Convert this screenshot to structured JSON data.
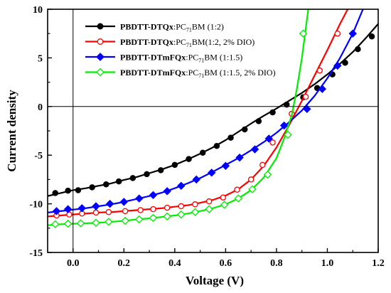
{
  "chart_data": {
    "type": "line",
    "title": "",
    "xlabel": "Voltage (V)",
    "ylabel": "Current density",
    "xlim": [
      -0.1,
      1.2
    ],
    "ylim": [
      -15,
      10
    ],
    "x_ticks": [
      0.0,
      0.2,
      0.4,
      0.6,
      0.8,
      1.0,
      1.2
    ],
    "x_tick_labels": [
      "0.0",
      "0.2",
      "0.4",
      "0.6",
      "0.8",
      "1.0",
      "1.2"
    ],
    "y_ticks": [
      -15,
      -10,
      -5,
      0,
      5,
      10
    ],
    "y_tick_labels": [
      "-15",
      "-10",
      "-5",
      "0",
      "5",
      "10"
    ],
    "reference_lines": {
      "x": 0,
      "y": 0
    },
    "grid": false,
    "legend_position": "top-left",
    "series": [
      {
        "legend": {
          "bold": "PBDTT-DTQx",
          "rest": ":PC",
          "sub": "71",
          "tail": "BM (1:2)"
        },
        "color": "#000000",
        "marker": "circle",
        "filled": true,
        "points": [
          [
            -0.1,
            -9.2
          ],
          [
            -0.05,
            -8.9
          ],
          [
            0.0,
            -8.6
          ],
          [
            0.05,
            -8.4
          ],
          [
            0.1,
            -8.15
          ],
          [
            0.15,
            -7.9
          ],
          [
            0.2,
            -7.55
          ],
          [
            0.25,
            -7.25
          ],
          [
            0.3,
            -6.85
          ],
          [
            0.35,
            -6.45
          ],
          [
            0.4,
            -6.0
          ],
          [
            0.45,
            -5.45
          ],
          [
            0.5,
            -4.85
          ],
          [
            0.55,
            -4.2
          ],
          [
            0.6,
            -3.45
          ],
          [
            0.65,
            -2.6
          ],
          [
            0.7,
            -1.75
          ],
          [
            0.75,
            -0.95
          ],
          [
            0.8,
            -0.2
          ],
          [
            0.85,
            0.6
          ],
          [
            0.9,
            1.4
          ],
          [
            0.95,
            2.3
          ],
          [
            1.0,
            3.3
          ],
          [
            1.05,
            4.4
          ],
          [
            1.1,
            5.6
          ],
          [
            1.15,
            7.0
          ],
          [
            1.2,
            8.5
          ]
        ],
        "markers_at": [
          [
            -0.07,
            -8.9
          ],
          [
            -0.02,
            -8.65
          ],
          [
            0.02,
            -8.6
          ],
          [
            0.075,
            -8.3
          ],
          [
            0.13,
            -8.0
          ],
          [
            0.18,
            -7.7
          ],
          [
            0.235,
            -7.35
          ],
          [
            0.29,
            -6.95
          ],
          [
            0.345,
            -6.55
          ],
          [
            0.4,
            -6.0
          ],
          [
            0.455,
            -5.4
          ],
          [
            0.51,
            -4.75
          ],
          [
            0.565,
            -4.05
          ],
          [
            0.62,
            -3.2
          ],
          [
            0.675,
            -2.35
          ],
          [
            0.73,
            -1.5
          ],
          [
            0.785,
            -0.6
          ],
          [
            0.84,
            0.2
          ],
          [
            0.905,
            0.95
          ],
          [
            0.96,
            1.9
          ],
          [
            1.02,
            3.3
          ],
          [
            1.07,
            4.5
          ],
          [
            1.12,
            5.9
          ],
          [
            1.175,
            7.2
          ]
        ]
      },
      {
        "legend": {
          "bold": "PBDTT-DTQx",
          "rest": ":PC",
          "sub": "71",
          "tail": "BM(1:2, 2% DIO)"
        },
        "color": "#ff0000",
        "marker": "circle",
        "filled": false,
        "points": [
          [
            -0.1,
            -11.3
          ],
          [
            -0.05,
            -11.2
          ],
          [
            0.0,
            -11.1
          ],
          [
            0.05,
            -11.0
          ],
          [
            0.1,
            -10.9
          ],
          [
            0.15,
            -10.85
          ],
          [
            0.2,
            -10.75
          ],
          [
            0.25,
            -10.65
          ],
          [
            0.3,
            -10.55
          ],
          [
            0.35,
            -10.45
          ],
          [
            0.4,
            -10.3
          ],
          [
            0.45,
            -10.15
          ],
          [
            0.5,
            -9.9
          ],
          [
            0.55,
            -9.6
          ],
          [
            0.6,
            -9.15
          ],
          [
            0.65,
            -8.5
          ],
          [
            0.7,
            -7.5
          ],
          [
            0.75,
            -6.1
          ],
          [
            0.8,
            -4.2
          ],
          [
            0.85,
            -1.9
          ],
          [
            0.9,
            0.6
          ],
          [
            0.95,
            3.2
          ],
          [
            1.0,
            5.8
          ],
          [
            1.05,
            8.5
          ],
          [
            1.08,
            10.0
          ]
        ],
        "markers_at": [
          [
            -0.065,
            -11.2
          ],
          [
            -0.015,
            -11.1
          ],
          [
            0.035,
            -11.0
          ],
          [
            0.09,
            -10.9
          ],
          [
            0.14,
            -10.85
          ],
          [
            0.205,
            -10.75
          ],
          [
            0.265,
            -10.65
          ],
          [
            0.315,
            -10.55
          ],
          [
            0.37,
            -10.4
          ],
          [
            0.425,
            -10.25
          ],
          [
            0.48,
            -10.05
          ],
          [
            0.535,
            -9.75
          ],
          [
            0.59,
            -9.35
          ],
          [
            0.645,
            -8.55
          ],
          [
            0.7,
            -7.5
          ],
          [
            0.745,
            -6.0
          ],
          [
            0.785,
            -3.7
          ],
          [
            0.86,
            -0.75
          ],
          [
            0.915,
            1.0
          ],
          [
            0.97,
            3.7
          ],
          [
            1.04,
            7.5
          ]
        ]
      },
      {
        "legend": {
          "bold": "PBDTT-DTmFQx",
          "rest": ":PC",
          "sub": "71",
          "tail": "BM (1:1.5)"
        },
        "color": "#0000ff",
        "marker": "diamond",
        "filled": true,
        "points": [
          [
            -0.1,
            -10.9
          ],
          [
            -0.05,
            -10.75
          ],
          [
            0.0,
            -10.6
          ],
          [
            0.05,
            -10.45
          ],
          [
            0.1,
            -10.25
          ],
          [
            0.15,
            -10.05
          ],
          [
            0.2,
            -9.8
          ],
          [
            0.25,
            -9.5
          ],
          [
            0.3,
            -9.2
          ],
          [
            0.35,
            -8.85
          ],
          [
            0.4,
            -8.4
          ],
          [
            0.45,
            -7.9
          ],
          [
            0.5,
            -7.35
          ],
          [
            0.55,
            -6.7
          ],
          [
            0.6,
            -6.0
          ],
          [
            0.65,
            -5.3
          ],
          [
            0.7,
            -4.5
          ],
          [
            0.75,
            -3.65
          ],
          [
            0.8,
            -2.7
          ],
          [
            0.85,
            -1.6
          ],
          [
            0.9,
            -0.4
          ],
          [
            0.95,
            1.1
          ],
          [
            1.0,
            2.9
          ],
          [
            1.05,
            5.0
          ],
          [
            1.1,
            7.5
          ],
          [
            1.14,
            10.0
          ]
        ],
        "markers_at": [
          [
            -0.065,
            -10.75
          ],
          [
            -0.02,
            -10.55
          ],
          [
            0.035,
            -10.45
          ],
          [
            0.09,
            -10.25
          ],
          [
            0.145,
            -10.0
          ],
          [
            0.2,
            -9.8
          ],
          [
            0.26,
            -9.45
          ],
          [
            0.315,
            -9.1
          ],
          [
            0.37,
            -8.7
          ],
          [
            0.425,
            -8.15
          ],
          [
            0.485,
            -7.5
          ],
          [
            0.545,
            -6.8
          ],
          [
            0.6,
            -6.1
          ],
          [
            0.655,
            -5.25
          ],
          [
            0.715,
            -4.4
          ],
          [
            0.77,
            -3.3
          ],
          [
            0.83,
            -1.95
          ],
          [
            0.92,
            -0.25
          ],
          [
            0.98,
            1.8
          ],
          [
            1.04,
            4.2
          ],
          [
            1.1,
            7.5
          ]
        ]
      },
      {
        "legend": {
          "bold": "PBDTT-DTmFQx",
          "rest": ":PC",
          "sub": "71",
          "tail": "BM (1:1.5, 2% DIO)"
        },
        "color": "#00ee00",
        "marker": "diamond",
        "filled": false,
        "points": [
          [
            -0.1,
            -12.2
          ],
          [
            -0.05,
            -12.1
          ],
          [
            0.0,
            -12.05
          ],
          [
            0.05,
            -12.0
          ],
          [
            0.1,
            -11.95
          ],
          [
            0.15,
            -11.85
          ],
          [
            0.2,
            -11.75
          ],
          [
            0.25,
            -11.6
          ],
          [
            0.3,
            -11.5
          ],
          [
            0.35,
            -11.35
          ],
          [
            0.4,
            -11.2
          ],
          [
            0.45,
            -11.0
          ],
          [
            0.5,
            -10.75
          ],
          [
            0.55,
            -10.45
          ],
          [
            0.6,
            -10.05
          ],
          [
            0.65,
            -9.45
          ],
          [
            0.7,
            -8.6
          ],
          [
            0.75,
            -7.3
          ],
          [
            0.8,
            -5.3
          ],
          [
            0.83,
            -3.3
          ],
          [
            0.86,
            -0.9
          ],
          [
            0.88,
            1.8
          ],
          [
            0.9,
            5.0
          ],
          [
            0.915,
            8.0
          ],
          [
            0.925,
            10.0
          ]
        ],
        "markers_at": [
          [
            -0.07,
            -12.1
          ],
          [
            -0.02,
            -12.05
          ],
          [
            0.03,
            -12.0
          ],
          [
            0.09,
            -11.95
          ],
          [
            0.14,
            -11.85
          ],
          [
            0.205,
            -11.75
          ],
          [
            0.26,
            -11.6
          ],
          [
            0.315,
            -11.45
          ],
          [
            0.37,
            -11.3
          ],
          [
            0.425,
            -11.1
          ],
          [
            0.48,
            -10.85
          ],
          [
            0.535,
            -10.55
          ],
          [
            0.595,
            -10.1
          ],
          [
            0.65,
            -9.45
          ],
          [
            0.705,
            -8.5
          ],
          [
            0.765,
            -7.0
          ],
          [
            0.845,
            -2.9
          ],
          [
            0.905,
            7.5
          ]
        ]
      }
    ]
  }
}
